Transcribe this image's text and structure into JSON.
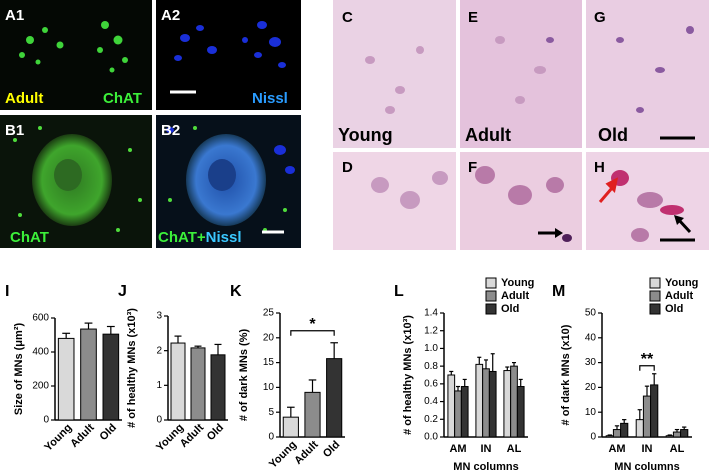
{
  "panels": [
    {
      "label": "A1",
      "captions": [
        "Adult",
        "ChAT"
      ]
    },
    {
      "label": "A2",
      "captions": [
        "Nissl"
      ]
    },
    {
      "label": "B1",
      "captions": [
        "ChAT"
      ]
    },
    {
      "label": "B2",
      "captions": [
        "ChAT+",
        "Nissl"
      ]
    },
    {
      "label": "C",
      "captions": [
        "Young"
      ]
    },
    {
      "label": "D"
    },
    {
      "label": "E",
      "captions": [
        "Adult"
      ]
    },
    {
      "label": "F"
    },
    {
      "label": "G",
      "captions": [
        "Old"
      ]
    },
    {
      "label": "H"
    }
  ],
  "chart_data": [
    {
      "type": "bar",
      "panel": "I",
      "ylabel": "Size of MNs (μm²)",
      "categories": [
        "Young",
        "Adult",
        "Old"
      ],
      "values": [
        480,
        535,
        505
      ],
      "errors": [
        30,
        35,
        45
      ],
      "colors": [
        "#d9d9d9",
        "#8c8c8c",
        "#333333"
      ],
      "ylim": [
        0,
        600
      ],
      "yticks": [
        0,
        200,
        400,
        600
      ]
    },
    {
      "type": "bar",
      "panel": "J",
      "ylabel": "# of healthy MNs (x10³)",
      "categories": [
        "Young",
        "Adult",
        "Old"
      ],
      "values": [
        2.22,
        2.08,
        1.88
      ],
      "errors": [
        0.2,
        0.05,
        0.3
      ],
      "colors": [
        "#d9d9d9",
        "#8c8c8c",
        "#333333"
      ],
      "ylim": [
        0,
        3
      ],
      "yticks": [
        0,
        1,
        2,
        3
      ]
    },
    {
      "type": "bar",
      "panel": "K",
      "ylabel": "# of dark MNs (%)",
      "categories": [
        "Young",
        "Adult",
        "Old"
      ],
      "values": [
        4,
        9,
        15.8
      ],
      "errors": [
        2,
        2.5,
        3.2
      ],
      "colors": [
        "#d9d9d9",
        "#8c8c8c",
        "#333333"
      ],
      "ylim": [
        0,
        25
      ],
      "yticks": [
        0,
        5,
        10,
        15,
        20,
        25
      ],
      "significance": [
        {
          "text": "*",
          "between": [
            "Young",
            "Old"
          ]
        }
      ]
    },
    {
      "type": "grouped-bar",
      "panel": "L",
      "ylabel": "# of healthy MNs (x10³)",
      "xlabel": "MN columns",
      "categories": [
        "AM",
        "IN",
        "AL"
      ],
      "series": [
        {
          "name": "Young",
          "color": "#d9d9d9",
          "values": [
            0.7,
            0.82,
            0.75
          ],
          "errors": [
            0.04,
            0.08,
            0.04
          ]
        },
        {
          "name": "Adult",
          "color": "#8c8c8c",
          "values": [
            0.52,
            0.77,
            0.8
          ],
          "errors": [
            0.05,
            0.1,
            0.04
          ]
        },
        {
          "name": "Old",
          "color": "#333333",
          "values": [
            0.57,
            0.74,
            0.57
          ],
          "errors": [
            0.08,
            0.2,
            0.08
          ]
        }
      ],
      "ylim": [
        0,
        1.4
      ],
      "yticks": [
        {
          "value": 0,
          "label": "0.0"
        },
        0.2,
        0.4,
        0.6,
        0.8,
        {
          "value": 1,
          "label": "1.0"
        },
        1.2,
        1.4
      ],
      "legend": "top-right"
    },
    {
      "type": "grouped-bar",
      "panel": "M",
      "ylabel": "# of dark MNs (x10)",
      "xlabel": "MN columns",
      "categories": [
        "AM",
        "IN",
        "AL"
      ],
      "series": [
        {
          "name": "Young",
          "color": "#d9d9d9",
          "values": [
            0.5,
            7,
            0.5
          ],
          "errors": [
            0.3,
            4,
            0.3
          ]
        },
        {
          "name": "Adult",
          "color": "#8c8c8c",
          "values": [
            3,
            16.5,
            2
          ],
          "errors": [
            1.5,
            4,
            1
          ]
        },
        {
          "name": "Old",
          "color": "#333333",
          "values": [
            5.5,
            21,
            3
          ],
          "errors": [
            1.5,
            4.5,
            1
          ]
        }
      ],
      "ylim": [
        0,
        50
      ],
      "yticks": [
        0,
        10,
        20,
        30,
        40,
        50
      ],
      "legend": "top-right",
      "significance": [
        {
          "text": "**",
          "category": "IN",
          "between": [
            "Young",
            "Old"
          ]
        }
      ]
    }
  ]
}
